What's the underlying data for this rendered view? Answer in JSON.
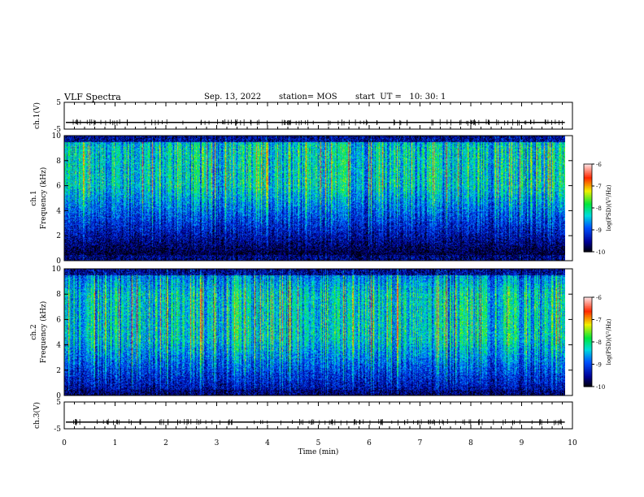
{
  "header": {
    "title": "VLF Spectra",
    "date": "Sep. 13, 2022",
    "station": "station= MOS",
    "start": "start  UT =   10: 30: 1"
  },
  "chart_data": [
    {
      "type": "line",
      "name": "ch1-waveform",
      "ylabel": "ch.1(V)",
      "ylim": [
        -5,
        5
      ],
      "ytick_labels": [
        "5",
        "-5"
      ],
      "y_baseline": -2.5
    },
    {
      "type": "heatmap",
      "name": "ch1-spectrogram",
      "ylabel": "ch.1",
      "ylabel2": "Frequency (kHz)",
      "ylim": [
        0,
        10
      ],
      "ytick_labels": [
        "0",
        "2",
        "4",
        "6",
        "8",
        "10"
      ],
      "xlim": [
        0,
        10
      ],
      "dominant_band_khz": [
        6,
        9
      ],
      "colorbar": {
        "label": "log(PSD)(V²/Hz)",
        "range": [
          -10,
          -6
        ],
        "tick_labels": [
          "-6",
          "-7",
          "-8",
          "-9",
          "-10"
        ]
      }
    },
    {
      "type": "heatmap",
      "name": "ch2-spectrogram",
      "ylabel": "ch.2",
      "ylabel2": "Frequency (kHz)",
      "ylim": [
        0,
        10
      ],
      "ytick_labels": [
        "0",
        "2",
        "4",
        "6",
        "8",
        "10"
      ],
      "xlim": [
        0,
        10
      ],
      "dominant_band_khz": [
        4.5,
        8
      ],
      "colorbar": {
        "label": "log(PSD)(V²/Hz)",
        "range": [
          -10,
          -6
        ],
        "tick_labels": [
          "-6",
          "-7",
          "-8",
          "-9",
          "-10"
        ]
      }
    },
    {
      "type": "line",
      "name": "ch3-waveform",
      "ylabel": "ch.3(V)",
      "ylim": [
        -5,
        5
      ],
      "ytick_labels": [
        "5",
        "-5"
      ],
      "y_baseline": -2.5
    }
  ],
  "x_axis": {
    "label": "Time  (min)",
    "range": [
      0,
      10
    ],
    "tick_labels": [
      "0",
      "1",
      "2",
      "3",
      "4",
      "5",
      "6",
      "7",
      "8",
      "9",
      "10"
    ],
    "data_end_min": 9.85
  }
}
